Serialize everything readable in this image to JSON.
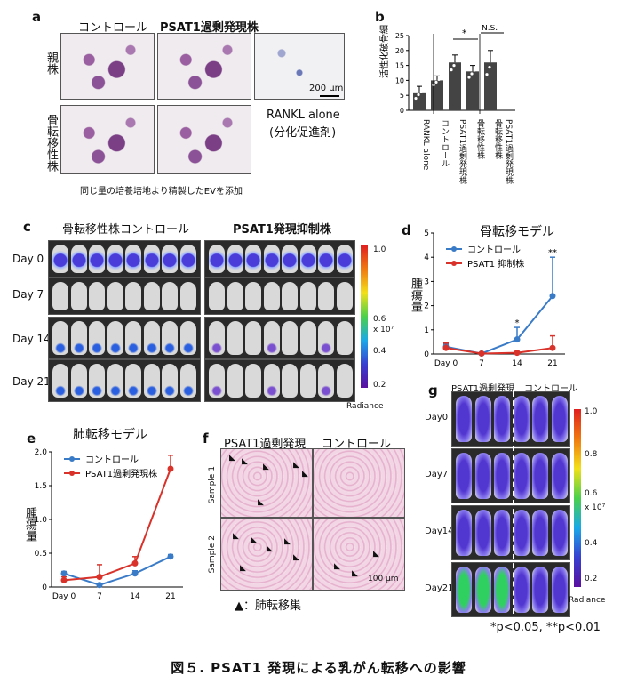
{
  "caption": "図５. PSAT1 発現による乳がん転移への影響",
  "panel_a": {
    "letter": "a",
    "col_control": "コントロール",
    "col_psat1": "PSAT1過剰発現株",
    "row_parent": "親株",
    "row_bone": "骨転移性株",
    "scale": "200 μm",
    "rankl": "RANKL alone",
    "rankl_sub": "(分化促進剤)",
    "note": "同じ量の培養培地より精製したEVを添加"
  },
  "panel_b": {
    "letter": "b",
    "ylabel": "活性化破骨細胞数",
    "star": "*",
    "ns": "N.S.",
    "chart_data": {
      "type": "bar",
      "categories": [
        "RANKL alone",
        "コントロール",
        "PSAT1過剰発現株",
        "骨転移性株",
        "骨転移性株 PSAT1過剰発現株"
      ],
      "values": [
        6,
        10,
        16,
        13,
        16
      ],
      "errors": [
        2,
        1.5,
        2.5,
        2,
        4
      ],
      "ylim": [
        0,
        25
      ],
      "yticks": [
        "0",
        "5",
        "10",
        "15",
        "20",
        "25"
      ]
    },
    "cat_labels": [
      "RANKL alone",
      "コントロール",
      "PSAT1過剰発現株",
      "骨転移性株",
      "骨転移性株",
      "PSAT1過剰発現株"
    ]
  },
  "panel_c": {
    "letter": "c",
    "col_control": "骨転移性株コントロール",
    "col_kd": "PSAT1発現抑制株",
    "days": [
      "Day 0",
      "Day 7",
      "Day 14",
      "Day 21"
    ],
    "cb_top": "1.0",
    "cb_mid": "0.6",
    "cb_unit": "x 10⁷",
    "cb_4": "0.4",
    "cb_2": "0.2",
    "radiance": "Radiance"
  },
  "panel_d": {
    "letter": "d",
    "title": "骨転移モデル",
    "ylabel": "腫瘍量",
    "chart_data": {
      "type": "line",
      "x": [
        "Day 0",
        "7",
        "14",
        "21"
      ],
      "series": [
        {
          "name": "コントロール",
          "values": [
            0.3,
            0.02,
            0.6,
            2.4
          ],
          "errors": [
            0.1,
            0.02,
            0.5,
            1.6
          ],
          "color": "#3a7bc8"
        },
        {
          "name": "PSAT1 抑制株",
          "values": [
            0.25,
            0.02,
            0.05,
            0.25
          ],
          "errors": [
            0.2,
            0.02,
            0.05,
            0.5
          ],
          "color": "#d8322a"
        }
      ],
      "ylim": [
        0,
        5
      ],
      "yticks": [
        "0",
        "1",
        "2",
        "3",
        "4",
        "5"
      ],
      "annotations": [
        {
          "x": "14",
          "text": "*"
        },
        {
          "x": "21",
          "text": "**"
        }
      ]
    }
  },
  "panel_e": {
    "letter": "e",
    "title": "肺転移モデル",
    "ylabel": "腫瘍量",
    "chart_data": {
      "type": "line",
      "x": [
        "Day 0",
        "7",
        "14",
        "21"
      ],
      "series": [
        {
          "name": "コントロール",
          "values": [
            0.2,
            0.03,
            0.2,
            0.45
          ],
          "errors": [
            0.03,
            0.02,
            0.04,
            0.03
          ],
          "color": "#3a7bc8"
        },
        {
          "name": "PSAT1過剰発現株",
          "values": [
            0.1,
            0.15,
            0.35,
            1.75
          ],
          "errors": [
            0.05,
            0.18,
            0.1,
            0.2
          ],
          "color": "#d8322a"
        }
      ],
      "ylim": [
        0,
        2.0
      ],
      "yticks": [
        "0",
        "0.5",
        "1.0",
        "1.5",
        "2.0"
      ]
    }
  },
  "panel_f": {
    "letter": "f",
    "col_psat1": "PSAT1過剰発現",
    "col_control": "コントロール",
    "row1": "Sample 1",
    "row2": "Sample 2",
    "scale": "100 μm",
    "legend": "▲：肺転移巣"
  },
  "panel_g": {
    "letter": "g",
    "col_psat1": "PSAT1過剰発現",
    "col_control": "コントロール",
    "days": [
      "Day0",
      "Day7",
      "Day14",
      "Day21"
    ],
    "cb_top": "1.0",
    "cb_8": "0.8",
    "cb_6": "0.6",
    "cb_unit": "x 10⁷",
    "cb_4": "0.4",
    "cb_2": "0.2",
    "radiance": "Radiance"
  },
  "pvalues": "*p<0.05, **p<0.01"
}
